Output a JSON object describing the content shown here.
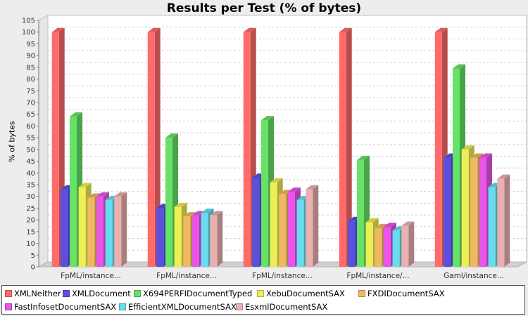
{
  "chart_data": {
    "type": "bar",
    "title": "Results per Test (% of bytes)",
    "xlabel": "",
    "ylabel": "% of bytes",
    "ylim": [
      0,
      105
    ],
    "yticks": [
      0,
      5,
      10,
      15,
      20,
      25,
      30,
      35,
      40,
      45,
      50,
      55,
      60,
      65,
      70,
      75,
      80,
      85,
      90,
      95,
      100,
      105
    ],
    "grid": true,
    "legend_position": "bottom",
    "categories": [
      "FpML/instance...",
      "FpML/instance...",
      "FpML/instance...",
      "FpML/instance/...",
      "Gaml/instance..."
    ],
    "series": [
      {
        "name": "XMLNeither",
        "color": "#ff6b6b",
        "values": [
          100,
          100,
          100,
          100,
          100
        ]
      },
      {
        "name": "XMLDocument",
        "color": "#5a4fe0",
        "values": [
          33,
          25,
          38,
          19.5,
          46.5
        ]
      },
      {
        "name": "X694PERFIDocumentTyped",
        "color": "#66e266",
        "values": [
          64,
          55,
          62.5,
          45.5,
          84.5
        ]
      },
      {
        "name": "XebuDocumentSAX",
        "color": "#eeee55",
        "values": [
          34,
          25.5,
          36,
          19,
          50
        ]
      },
      {
        "name": "FXDIDocumentSAX",
        "color": "#f0b860",
        "values": [
          29.5,
          21.5,
          31,
          16.5,
          46.5
        ]
      },
      {
        "name": "FastInfosetDocumentSAX",
        "color": "#e855e8",
        "values": [
          30,
          22,
          32,
          17,
          46.5
        ]
      },
      {
        "name": "EfficientXMLDocumentSAX",
        "color": "#66ddee",
        "values": [
          28.5,
          23,
          28.5,
          15.5,
          34
        ]
      },
      {
        "name": "EsxmlDocumentSAX",
        "color": "#eab0b0",
        "values": [
          30,
          22,
          33,
          17.5,
          37.5
        ]
      }
    ]
  }
}
